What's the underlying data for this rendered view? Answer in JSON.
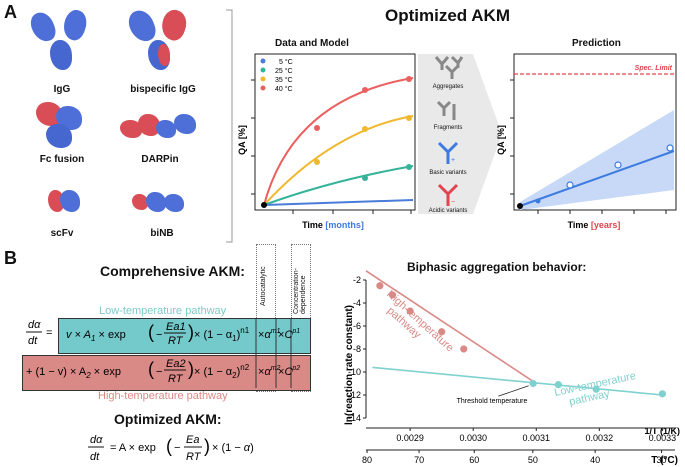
{
  "panel_a": {
    "letter": "A",
    "molecules": [
      "IgG",
      "bispecific IgG",
      "Fc fusion",
      "DARPin",
      "scFv",
      "biNB"
    ],
    "title": "Optimized AKM",
    "data_plot": {
      "title": "Data and Model",
      "ylabel": "QA [%]",
      "xlabel_prefix": "Time ",
      "xlabel_unit": "[months]",
      "legend": [
        "5 °C",
        "25 °C",
        "35 °C",
        "40 °C"
      ]
    },
    "qa_types": [
      "Aggregates",
      "Fragments",
      "Basic variants",
      "Acidic variants"
    ],
    "prediction_plot": {
      "title": "Prediction",
      "ylabel": "QA [%]",
      "xlabel_prefix": "Time ",
      "xlabel_unit": "[years]",
      "spec_limit": "Spec. Limit"
    }
  },
  "panel_b": {
    "letter": "B",
    "comprehensive_title": "Comprehensive AKM:",
    "low_temp_label": "Low-temperature pathway",
    "high_temp_label": "High-temperature pathway",
    "autocatalytic": "Autocatalytic",
    "concentration_dependence": "Concentration-dependence",
    "optimized_title": "Optimized AKM:"
  },
  "chart_data": {
    "type": "scatter",
    "title": "Biphasic aggregation behavior:",
    "ylabel": "ln(reaction rate constant)",
    "xlabel_top": "1/T (1/K)",
    "xlabel_bottom": "T (°C)",
    "xlim": [
      0.00283,
      0.00332
    ],
    "ylim": [
      -14,
      -2
    ],
    "yticks": [
      -2,
      -4,
      -6,
      -8,
      -10,
      -12,
      -14
    ],
    "xticks_top": [
      0.0029,
      0.003,
      0.0031,
      0.0032,
      0.0033
    ],
    "xticks_top_labels": [
      "0.0029",
      "0.0030",
      "0.0031",
      "0.0032",
      "0.0033"
    ],
    "xticks_bottom_labels": [
      "80",
      "70",
      "60",
      "50",
      "40",
      "30"
    ],
    "xticks_bottom_temps_c": [
      80,
      70,
      60,
      50,
      40,
      30
    ],
    "series": [
      {
        "name": "High-temperature pathway",
        "color": "#d98986",
        "x": [
          0.002852,
          0.002872,
          0.0029,
          0.00295,
          0.002985
        ],
        "y": [
          -2.5,
          -3.3,
          -4.7,
          -6.5,
          -8.0
        ],
        "fit_x": [
          0.00283,
          0.0031
        ],
        "fit_y": [
          -1.2,
          -11.0
        ]
      },
      {
        "name": "Low-temperature pathway",
        "color": "#7fd1cf",
        "x": [
          0.003095,
          0.003135,
          0.003195,
          0.0033
        ],
        "y": [
          -11.0,
          -11.1,
          -11.5,
          -11.9
        ],
        "fit_x": [
          0.00284,
          0.0033
        ],
        "fit_y": [
          -9.6,
          -12.0
        ]
      }
    ],
    "annotation": "Threshold temperature"
  }
}
